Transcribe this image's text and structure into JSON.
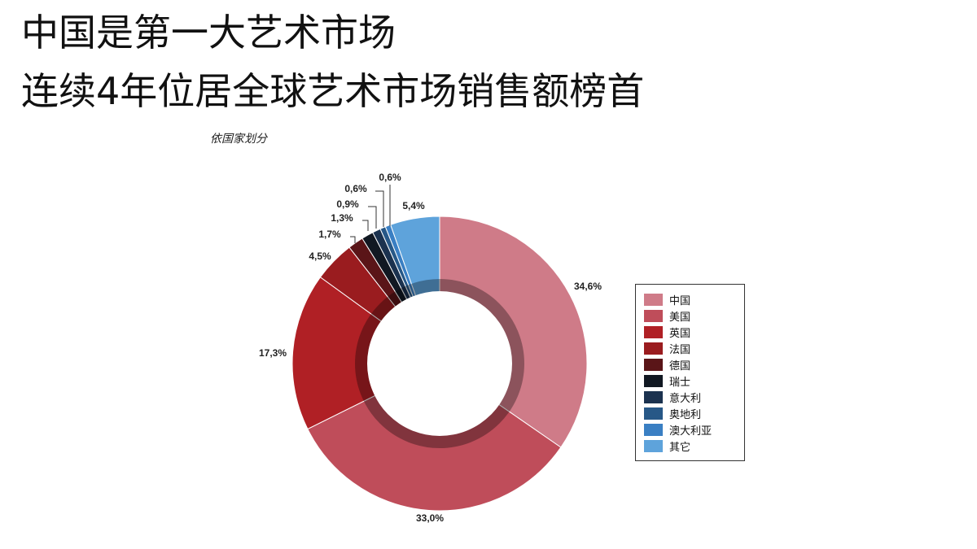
{
  "header": {
    "line1": "中国是第一大艺术市场",
    "line2": "连续4年位居全球艺术市场销售额榜首"
  },
  "chart_data": {
    "type": "pie",
    "subtitle": "依国家划分",
    "legend_position": "right",
    "slices": [
      {
        "name": "中国",
        "value": 34.6,
        "label": "34,6%",
        "color": "#cf7b88"
      },
      {
        "name": "美国",
        "value": 33.0,
        "label": "33,0%",
        "color": "#bf4d5a"
      },
      {
        "name": "英国",
        "value": 17.3,
        "label": "17,3%",
        "color": "#b02025"
      },
      {
        "name": "法国",
        "value": 4.5,
        "label": "4,5%",
        "color": "#9a1c1f"
      },
      {
        "name": "德国",
        "value": 1.7,
        "label": "1,7%",
        "color": "#5a1518"
      },
      {
        "name": "瑞士",
        "value": 1.3,
        "label": "1,3%",
        "color": "#111822"
      },
      {
        "name": "意大利",
        "value": 0.9,
        "label": "0,9%",
        "color": "#1b324f"
      },
      {
        "name": "奥地利",
        "value": 0.6,
        "label": "0,6%",
        "color": "#275887"
      },
      {
        "name": "澳大利亚",
        "value": 0.6,
        "label": "0,6%",
        "color": "#3a7fc3"
      },
      {
        "name": "其它",
        "value": 5.4,
        "label": "5,4%",
        "color": "#5ea3db"
      }
    ]
  }
}
